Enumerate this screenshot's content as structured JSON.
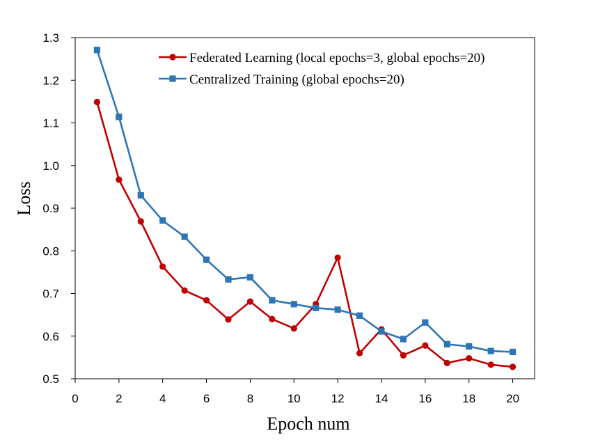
{
  "chart_data": {
    "type": "line",
    "title": "",
    "xlabel": "Epoch num",
    "ylabel": "Loss",
    "xlim": [
      0,
      21
    ],
    "ylim": [
      0.5,
      1.3
    ],
    "x_ticks": [
      0,
      2,
      4,
      6,
      8,
      10,
      12,
      14,
      16,
      18,
      20
    ],
    "x_tick_labels": [
      "0",
      "2",
      "4",
      "6",
      "8",
      "10",
      "12",
      "14",
      "16",
      "18",
      "20"
    ],
    "y_ticks": [
      0.5,
      0.6,
      0.7,
      0.8,
      0.9,
      1.0,
      1.1,
      1.2,
      1.3
    ],
    "y_tick_labels": [
      "0.5",
      "0.6",
      "0.7",
      "0.8",
      "0.9",
      "1.0",
      "1.1",
      "1.2",
      "1.3"
    ],
    "grid": false,
    "legend_position": "top-right",
    "x": [
      1,
      2,
      3,
      4,
      5,
      6,
      7,
      8,
      9,
      10,
      11,
      12,
      13,
      14,
      15,
      16,
      17,
      18,
      19,
      20
    ],
    "series": [
      {
        "name": "Federated Learning (local epochs=3, global epochs=20)",
        "color": "#c00000",
        "marker": "circle",
        "values": [
          1.149,
          0.967,
          0.869,
          0.763,
          0.707,
          0.684,
          0.639,
          0.681,
          0.64,
          0.618,
          0.675,
          0.784,
          0.56,
          0.616,
          0.555,
          0.578,
          0.537,
          0.548,
          0.533,
          0.528
        ]
      },
      {
        "name": "Centralized Training (global epochs=20)",
        "color": "#2e75b6",
        "marker": "square",
        "values": [
          1.271,
          1.114,
          0.93,
          0.871,
          0.833,
          0.779,
          0.733,
          0.738,
          0.684,
          0.675,
          0.666,
          0.662,
          0.648,
          0.611,
          0.593,
          0.632,
          0.581,
          0.576,
          0.565,
          0.563
        ]
      }
    ]
  }
}
